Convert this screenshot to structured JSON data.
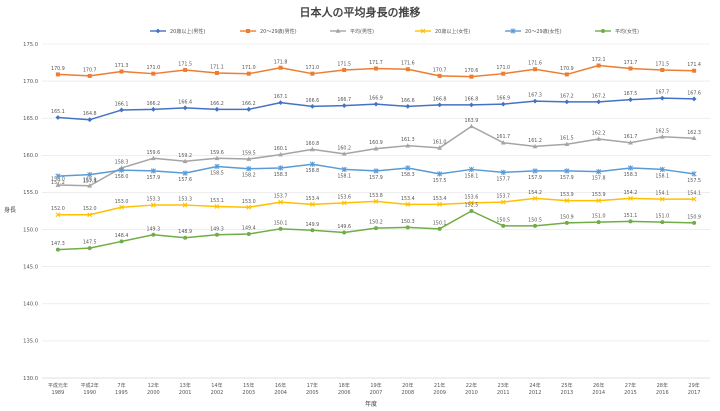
{
  "chart_data": {
    "type": "line",
    "title": "日本人の平均身長の推移",
    "xlabel": "年度",
    "ylabel": "身長",
    "ylim": [
      130.0,
      175.0
    ],
    "yticks": [
      "130.0",
      "135.0",
      "140.0",
      "145.0",
      "150.0",
      "155.0",
      "160.0",
      "165.0",
      "170.0",
      "175.0"
    ],
    "categories": [
      {
        "line1": "平成元年",
        "line2": "1989"
      },
      {
        "line1": "平成2年",
        "line2": "1990"
      },
      {
        "line1": "7年",
        "line2": "1995"
      },
      {
        "line1": "12年",
        "line2": "2000"
      },
      {
        "line1": "13年",
        "line2": "2001"
      },
      {
        "line1": "14年",
        "line2": "2002"
      },
      {
        "line1": "15年",
        "line2": "2003"
      },
      {
        "line1": "16年",
        "line2": "2004"
      },
      {
        "line1": "17年",
        "line2": "2005"
      },
      {
        "line1": "18年",
        "line2": "2006"
      },
      {
        "line1": "19年",
        "line2": "2007"
      },
      {
        "line1": "20年",
        "line2": "2008"
      },
      {
        "line1": "21年",
        "line2": "2009"
      },
      {
        "line1": "22年",
        "line2": "2010"
      },
      {
        "line1": "23年",
        "line2": "2011"
      },
      {
        "line1": "24年",
        "line2": "2012"
      },
      {
        "line1": "25年",
        "line2": "2013"
      },
      {
        "line1": "26年",
        "line2": "2014"
      },
      {
        "line1": "27年",
        "line2": "2015"
      },
      {
        "line1": "28年",
        "line2": "2016"
      },
      {
        "line1": "29年",
        "line2": "2017"
      }
    ],
    "grid": true,
    "legend_position": "top",
    "series": [
      {
        "name": "20歳以上(男性)",
        "color": "#4472c4",
        "marker": "diamond",
        "label_pos": "above",
        "values": [
          165.1,
          164.8,
          166.1,
          166.2,
          166.4,
          166.2,
          166.2,
          167.1,
          166.6,
          166.7,
          166.9,
          166.6,
          166.8,
          166.8,
          166.9,
          167.3,
          167.2,
          167.2,
          167.5,
          167.7,
          167.6
        ]
      },
      {
        "name": "20～29歳(男性)",
        "color": "#ed7d31",
        "marker": "square",
        "label_pos": "above",
        "values": [
          170.9,
          170.7,
          171.3,
          171.0,
          171.5,
          171.1,
          171.0,
          171.8,
          171.0,
          171.5,
          171.7,
          171.6,
          170.7,
          170.6,
          171.0,
          171.6,
          170.9,
          172.1,
          171.7,
          171.5,
          171.4
        ]
      },
      {
        "name": "平均(男性)",
        "color": "#a5a5a5",
        "marker": "triangle",
        "label_pos": "above",
        "values": [
          156.0,
          155.9,
          158.3,
          159.6,
          159.2,
          159.6,
          159.5,
          160.1,
          160.8,
          160.2,
          160.9,
          161.3,
          161.0,
          163.9,
          161.7,
          161.2,
          161.5,
          162.2,
          161.7,
          162.5,
          162.3
        ]
      },
      {
        "name": "20歳以上(女性)",
        "color": "#ffc000",
        "marker": "x",
        "label_pos": "above",
        "values": [
          152.0,
          152.0,
          153.0,
          153.3,
          153.3,
          153.1,
          153.0,
          153.7,
          153.4,
          153.6,
          153.8,
          153.4,
          153.4,
          153.6,
          153.7,
          154.2,
          153.9,
          153.9,
          154.2,
          154.1,
          154.1
        ]
      },
      {
        "name": "20～29歳(女性)",
        "color": "#5b9bd5",
        "marker": "star",
        "label_pos": "below",
        "values": [
          157.2,
          157.4,
          158.0,
          157.9,
          157.6,
          158.5,
          158.2,
          158.3,
          158.8,
          158.1,
          157.9,
          158.3,
          157.5,
          158.1,
          157.7,
          157.9,
          157.9,
          157.8,
          158.3,
          158.1,
          157.5
        ]
      },
      {
        "name": "平均(女性)",
        "color": "#70ad47",
        "marker": "circle",
        "label_pos": "above",
        "values": [
          147.3,
          147.5,
          148.4,
          149.3,
          148.9,
          149.3,
          149.4,
          150.1,
          149.9,
          149.6,
          150.2,
          150.3,
          150.1,
          152.5,
          150.5,
          150.5,
          150.9,
          151.0,
          151.1,
          151.0,
          150.9
        ]
      }
    ]
  }
}
